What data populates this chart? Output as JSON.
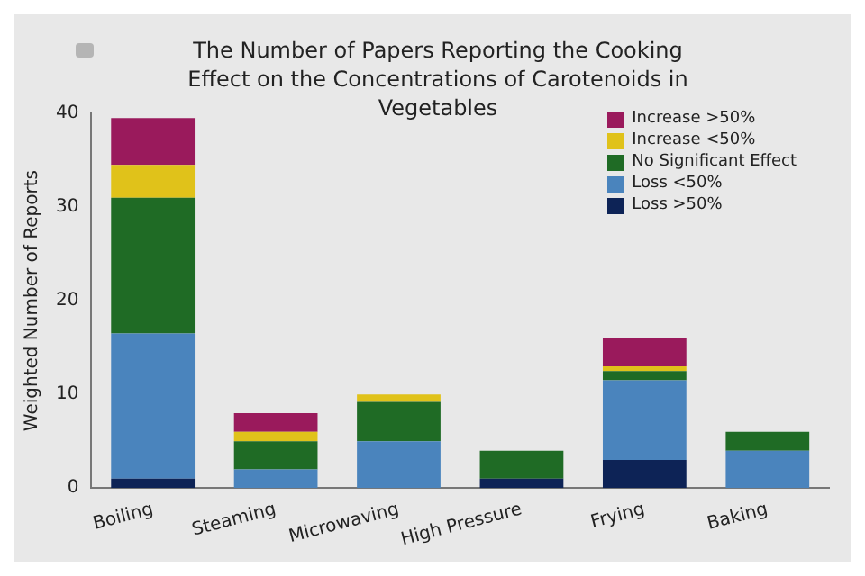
{
  "chart_data": {
    "type": "bar",
    "title": "The Number of Papers Reporting the Cooking Effect on the Concentrations of Carotenoids in Vegetables",
    "ylabel": "Weighted Number of Reports",
    "categories": [
      "Boiling",
      "Steaming",
      "Microwaving",
      "High Pressure",
      "Frying",
      "Baking"
    ],
    "series": [
      {
        "name": "Loss >50%",
        "color": "#0d2356",
        "values": [
          1,
          0,
          0,
          1,
          3,
          0
        ]
      },
      {
        "name": "Loss <50%",
        "color": "#4a84bd",
        "values": [
          15.5,
          2,
          5,
          0,
          8.5,
          4
        ]
      },
      {
        "name": "No Significant Effect",
        "color": "#1f6b25",
        "values": [
          14.5,
          3,
          4.2,
          3,
          1,
          2
        ]
      },
      {
        "name": "Increase <50%",
        "color": "#e0c21a",
        "values": [
          3.5,
          1,
          0.8,
          0,
          0.5,
          0
        ]
      },
      {
        "name": "Increase >50%",
        "color": "#9a1a5c",
        "values": [
          5,
          2,
          0,
          0,
          3,
          0
        ]
      }
    ],
    "stacked": true,
    "ylim": [
      0,
      40
    ],
    "yticks": [
      0,
      10,
      20,
      30,
      40
    ],
    "grid": false,
    "legend": "top right"
  }
}
